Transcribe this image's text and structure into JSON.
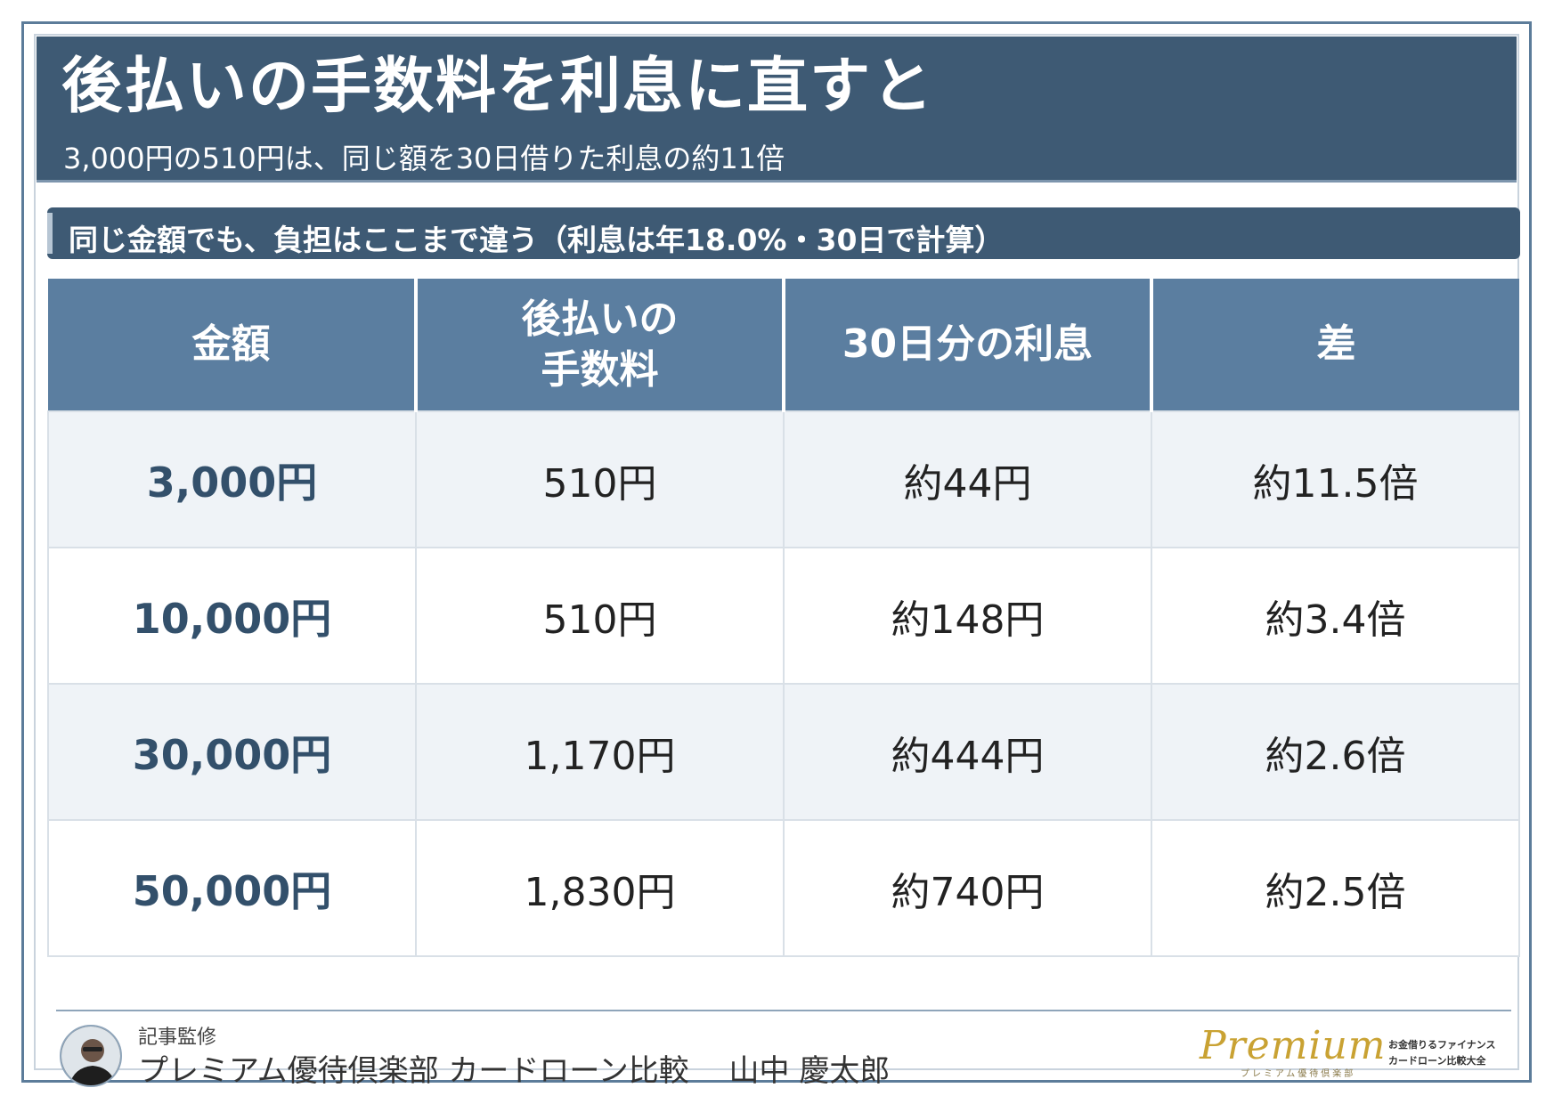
{
  "header": {
    "title": "後払いの手数料を利息に直すと",
    "subtitle": "3,000円の510円は、同じ額を30日借りた利息の約11倍"
  },
  "section": {
    "heading": "同じ金額でも、負担はここまで違う（利息は年18.0%・30日で計算）"
  },
  "table": {
    "headers": [
      [
        "金額"
      ],
      [
        "後払いの",
        "手数料"
      ],
      [
        "30日分の利息"
      ],
      [
        "差"
      ]
    ],
    "rows": [
      [
        "3,000円",
        "510円",
        "約44円",
        "約11.5倍"
      ],
      [
        "10,000円",
        "510円",
        "約148円",
        "約3.4倍"
      ],
      [
        "30,000円",
        "1,170円",
        "約444円",
        "約2.6倍"
      ],
      [
        "50,000円",
        "1,830円",
        "約740円",
        "約2.5倍"
      ]
    ]
  },
  "footer": {
    "label": "記事監修",
    "author": "プレミアム優待倶楽部 カードローン比較　 山中 慶太郎"
  },
  "logo": {
    "script": "Premium",
    "small": "プレミアム優待倶楽部",
    "tag1": "お金借りるファイナンス",
    "tag2": "カードローン比較大全"
  },
  "colors": {
    "header_bg": "#3e5a74",
    "table_header_bg": "#5b7ea0",
    "row_shade": "#eff3f7",
    "amount_text": "#33506b",
    "logo_gold": "#c9a233"
  }
}
